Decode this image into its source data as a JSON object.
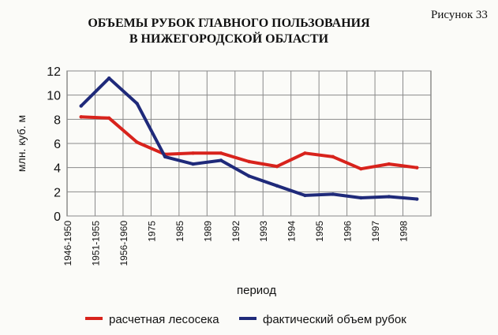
{
  "header": {
    "figure_label": "Рисунок 33",
    "title_line1": "ОБЪЕМЫ РУБОК ГЛАВНОГО ПОЛЬЗОВАНИЯ",
    "title_line2": "В НИЖЕГОРОДСКОЙ ОБЛАСТИ"
  },
  "chart_data": {
    "type": "line",
    "title": "ОБЪЕМЫ РУБОК ГЛАВНОГО ПОЛЬЗОВАНИЯ В НИЖЕГОРОДСКОЙ ОБЛАСТИ",
    "xlabel": "период",
    "ylabel": "млн. куб. м",
    "ylim": [
      0,
      12
    ],
    "yticks": [
      0,
      2,
      4,
      6,
      8,
      10,
      12
    ],
    "grid": true,
    "legend_position": "bottom",
    "categories": [
      "1946-1950",
      "1951-1955",
      "1956-1960",
      "1975",
      "1985",
      "1989",
      "1992",
      "1993",
      "1994",
      "1995",
      "1996",
      "1997",
      "1998"
    ],
    "series": [
      {
        "name": "расчетная лесосека",
        "color": "#d8231c",
        "x": [
          0.5,
          1.5,
          2.5,
          3.5,
          4.5,
          5.5,
          6.5,
          7.5,
          8.5,
          9.5,
          10.5,
          11.5,
          12.5
        ],
        "values": [
          8.2,
          8.1,
          6.1,
          5.1,
          5.2,
          5.2,
          4.5,
          4.1,
          5.2,
          4.9,
          3.9,
          4.3,
          4.0
        ]
      },
      {
        "name": "фактический объем рубок",
        "color": "#1f2a7a",
        "x": [
          0.5,
          1.5,
          2.5,
          3.5,
          4.5,
          5.5,
          6.5,
          7.5,
          8.5,
          9.5,
          10.5,
          11.5,
          12.5
        ],
        "values": [
          9.1,
          11.4,
          9.3,
          4.9,
          4.3,
          4.6,
          3.3,
          2.5,
          1.7,
          1.8,
          1.5,
          1.6,
          1.4
        ]
      }
    ]
  }
}
